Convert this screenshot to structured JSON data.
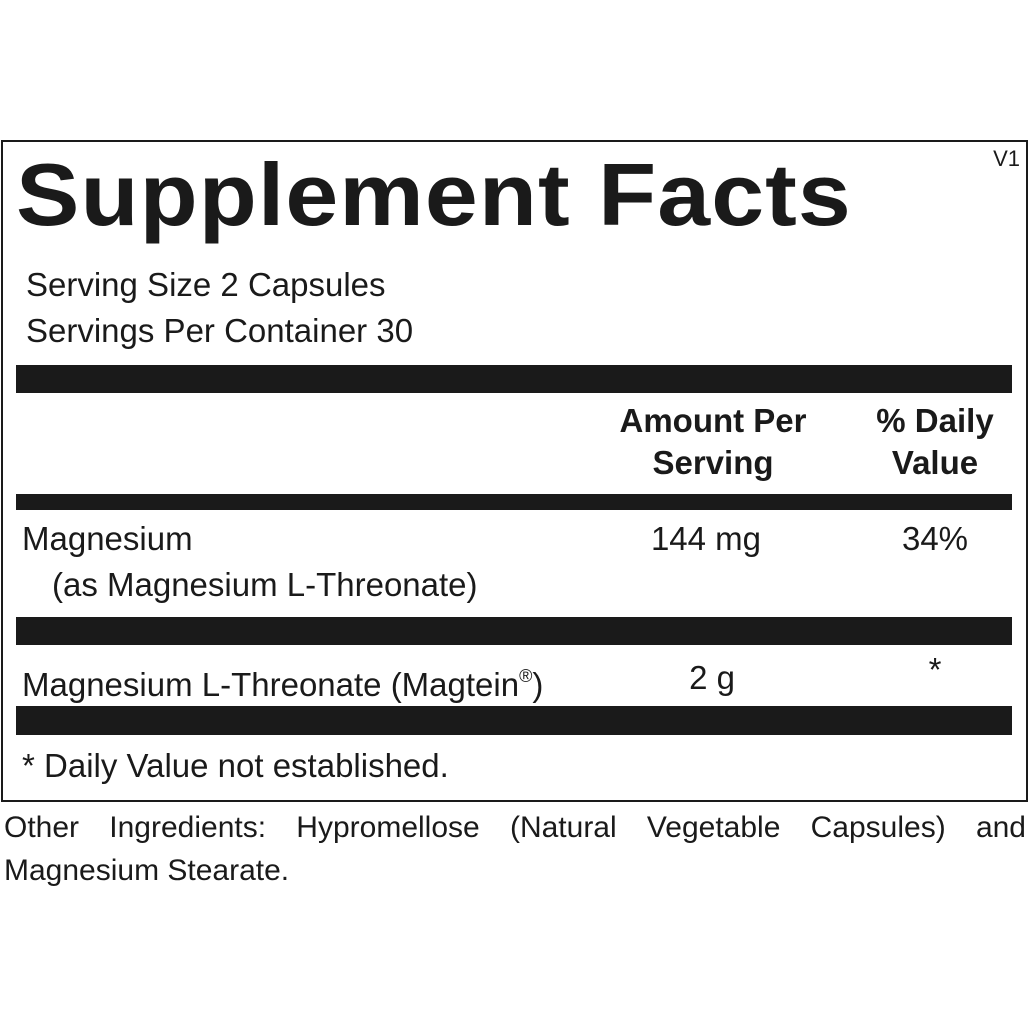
{
  "title": "Supplement Facts",
  "version": "V1",
  "serving_size": "Serving Size 2 Capsules",
  "servings_per_container": "Servings Per Container 30",
  "table": {
    "header": [
      "Amount Per Serving",
      "% Daily Value"
    ],
    "rows": [
      {
        "name": [
          "Magnesium"
        ],
        "detail": "(as Magnesium L-Threonate)",
        "amount": "144 mg",
        "daily_value": "34%"
      },
      {
        "name": [
          "Magnesium L-Threonate (Magtein",
          "®",
          ")"
        ],
        "amount": "2 g",
        "daily_value": "*"
      }
    ]
  },
  "footnote": "* Daily Value not established.",
  "other_ingredients": "Other Ingredients: Hypromellose (Natural Vegetable Capsules) and Magnesium Stearate."
}
